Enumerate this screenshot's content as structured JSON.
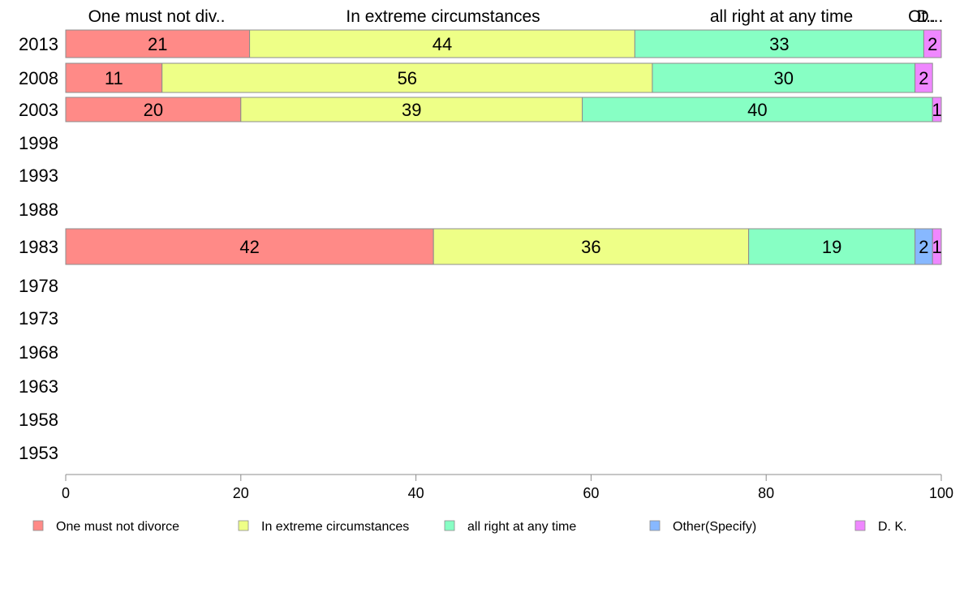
{
  "chart_data": {
    "type": "bar",
    "orientation": "horizontal",
    "stacked": true,
    "categories": [
      "2013",
      "2008",
      "2003",
      "1998",
      "1993",
      "1988",
      "1983",
      "1978",
      "1973",
      "1968",
      "1963",
      "1958",
      "1953"
    ],
    "series": [
      {
        "name": "One must not divorce",
        "color": "#ff8a87",
        "values": [
          21,
          11,
          20,
          null,
          null,
          null,
          42,
          null,
          null,
          null,
          null,
          null,
          null
        ]
      },
      {
        "name": "In extreme circumstances",
        "color": "#eeff87",
        "values": [
          44,
          56,
          39,
          null,
          null,
          null,
          36,
          null,
          null,
          null,
          null,
          null,
          null
        ]
      },
      {
        "name": "all right at any time",
        "color": "#87ffc4",
        "values": [
          33,
          30,
          40,
          null,
          null,
          null,
          19,
          null,
          null,
          null,
          null,
          null,
          null
        ]
      },
      {
        "name": "Other(Specify)",
        "color": "#87b8ff",
        "values": [
          0,
          0,
          0,
          null,
          null,
          null,
          2,
          null,
          null,
          null,
          null,
          null,
          null
        ]
      },
      {
        "name": "D. K.",
        "color": "#ef87ff",
        "values": [
          2,
          2,
          1,
          null,
          null,
          null,
          1,
          null,
          null,
          null,
          null,
          null,
          null
        ]
      }
    ],
    "top_labels": [
      "One must not div..",
      "In extreme circumstances",
      "all right at any time",
      "Ot..",
      "D..."
    ],
    "xlim": [
      0,
      100
    ],
    "xticks": [
      0,
      20,
      40,
      60,
      80,
      100
    ],
    "xlabel": "",
    "ylabel": "",
    "grid": false,
    "legend_position": "bottom"
  }
}
